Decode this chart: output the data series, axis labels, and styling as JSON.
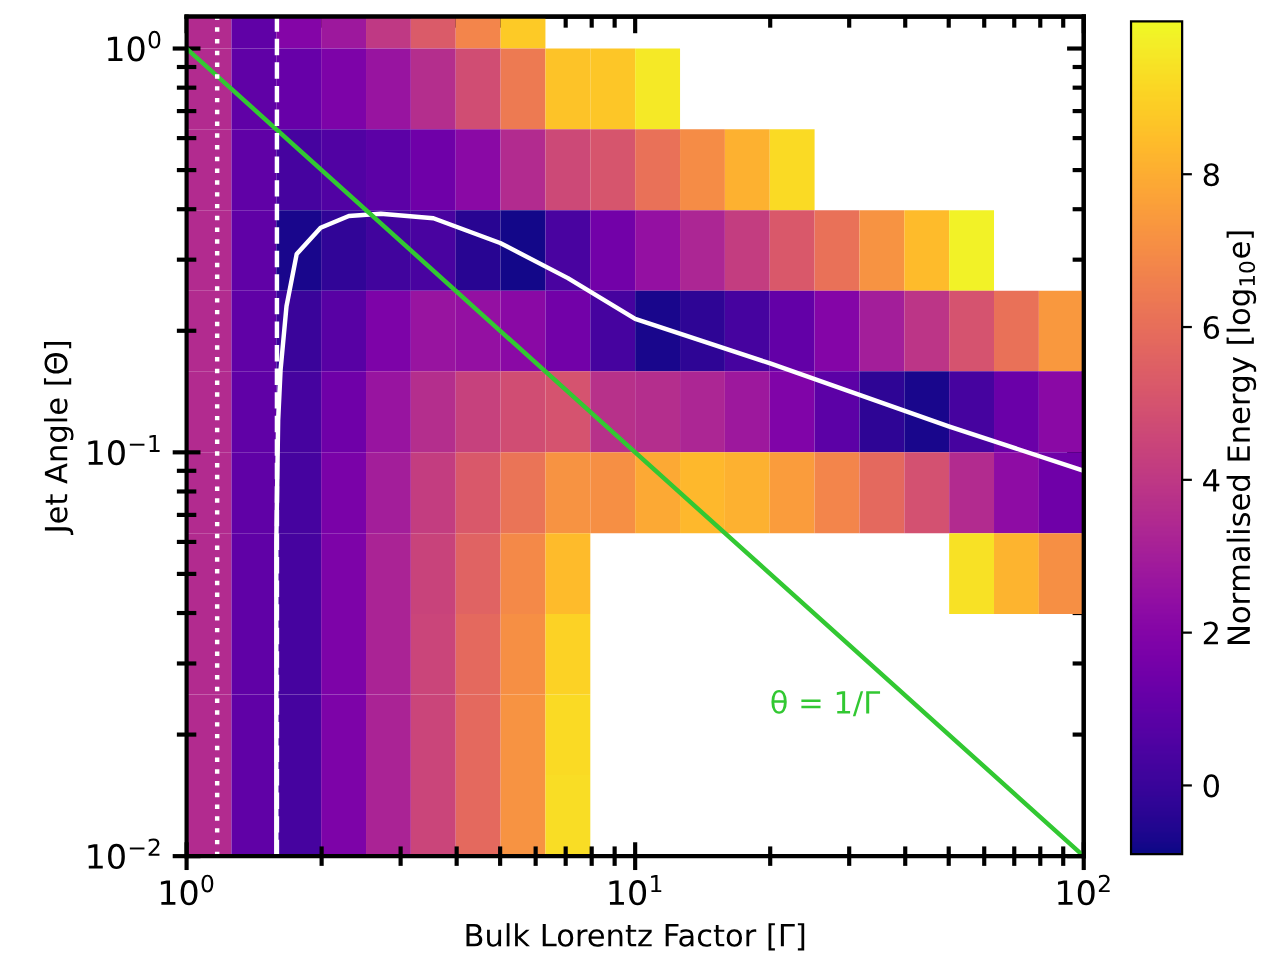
{
  "chart_data": {
    "type": "heatmap",
    "xlabel": "Bulk Lorentz Factor [Γ]",
    "ylabel": "Jet Angle [Θ]",
    "clabel": "Normalised Energy [log$_{10}$e]",
    "log": "xy",
    "xlim": [
      1,
      100
    ],
    "ylim": [
      0.01,
      1.2
    ],
    "xticks": [
      {
        "value": 1,
        "label": "10$^{0}$"
      },
      {
        "value": 10,
        "label": "10$^{1}$"
      },
      {
        "value": 100,
        "label": "10$^{2}$"
      }
    ],
    "yticks": [
      {
        "value": 0.01,
        "label": "10$^{−2}$"
      },
      {
        "value": 0.1,
        "label": "10$^{−1}$"
      },
      {
        "value": 1,
        "label": "10$^{0}$"
      }
    ],
    "clim": [
      -0.9,
      10
    ],
    "cticks": [
      0,
      2,
      4,
      6,
      8
    ],
    "x": [
      1.122,
      1.413,
      1.778,
      2.239,
      2.818,
      3.548,
      4.467,
      5.623,
      7.079,
      8.913,
      11.22,
      14.13,
      17.78,
      22.39,
      28.18,
      35.48,
      44.67,
      56.23,
      70.79,
      89.13
    ],
    "y": [
      1.259,
      0.794,
      0.501,
      0.316,
      0.2,
      0.126,
      0.0794,
      0.0501,
      0.0316,
      0.02,
      0.0126
    ],
    "cells": [
      [
        3.5,
        1.0,
        2.0,
        2.8,
        4.0,
        5.3,
        6.8,
        8.8,
        null,
        null,
        null,
        null,
        null,
        null,
        null,
        null,
        null,
        null,
        null,
        null
      ],
      [
        3.5,
        1.0,
        1.2,
        1.8,
        2.6,
        3.6,
        4.8,
        6.4,
        8.6,
        8.7,
        9.6,
        null,
        null,
        null,
        null,
        null,
        null,
        null,
        null,
        null
      ],
      [
        3.5,
        1.0,
        0.3,
        0.6,
        0.9,
        1.4,
        2.2,
        3.5,
        4.6,
        5.1,
        6.1,
        7.0,
        8.1,
        9.2,
        null,
        null,
        null,
        null,
        null,
        null
      ],
      [
        3.5,
        1.0,
        -0.7,
        -0.2,
        0.2,
        0.4,
        -0.4,
        -0.8,
        0.4,
        1.5,
        2.5,
        3.3,
        4.2,
        5.2,
        6.1,
        7.2,
        8.4,
        9.8,
        null,
        null
      ],
      [
        3.5,
        1.0,
        0.0,
        0.8,
        1.8,
        2.6,
        2.5,
        2.2,
        1.5,
        0.3,
        -0.7,
        -0.3,
        0.3,
        1.1,
        2.0,
        3.0,
        3.9,
        5.0,
        6.1,
        7.4
      ],
      [
        3.5,
        1.0,
        0.3,
        1.4,
        2.6,
        3.6,
        4.3,
        4.8,
        5.0,
        3.7,
        3.6,
        3.3,
        2.8,
        1.9,
        0.9,
        -0.3,
        -0.7,
        0.3,
        1.3,
        2.2
      ],
      [
        3.5,
        1.0,
        0.3,
        1.7,
        3.0,
        4.2,
        5.2,
        6.2,
        7.2,
        7.1,
        7.9,
        8.3,
        8.1,
        7.5,
        6.8,
        5.8,
        4.9,
        3.5,
        2.3,
        1.4
      ],
      [
        3.5,
        1.0,
        0.3,
        1.8,
        3.2,
        4.4,
        5.6,
        6.9,
        8.4,
        null,
        null,
        null,
        null,
        null,
        null,
        null,
        null,
        9.4,
        8.2,
        7.1
      ],
      [
        3.5,
        1.0,
        0.3,
        1.8,
        3.2,
        4.5,
        5.8,
        7.1,
        9.0,
        null,
        null,
        null,
        null,
        null,
        null,
        null,
        null,
        null,
        null,
        null
      ],
      [
        3.5,
        1.0,
        0.3,
        1.8,
        3.2,
        4.5,
        5.8,
        7.2,
        9.2,
        null,
        null,
        null,
        null,
        null,
        null,
        null,
        null,
        null,
        null,
        null
      ],
      [
        3.5,
        1.0,
        0.3,
        1.8,
        3.2,
        4.5,
        5.8,
        7.2,
        9.3,
        null,
        null,
        null,
        null,
        null,
        null,
        null,
        null,
        null,
        null,
        null
      ]
    ],
    "series": [
      {
        "type": "line",
        "color": "#ffffff",
        "x": [
          1.585,
          1.585,
          1.6,
          1.62,
          1.67,
          1.76,
          1.99,
          2.3,
          2.71,
          3.55,
          5.0,
          7.08,
          10,
          20,
          50,
          100
        ],
        "values": [
          0.01,
          0.06,
          0.12,
          0.16,
          0.23,
          0.31,
          0.36,
          0.385,
          0.39,
          0.38,
          0.33,
          0.27,
          0.214,
          0.166,
          0.116,
          0.09
        ]
      },
      {
        "type": "line",
        "color": "#32c832",
        "x": [
          1,
          100
        ],
        "values": [
          1,
          0.01
        ]
      }
    ],
    "ref_lines": [
      {
        "axis": "x",
        "value": 1.17,
        "color": "#ffffff",
        "line_style": "dotted"
      },
      {
        "axis": "x",
        "value": 1.59,
        "color": "#ffffff",
        "line_style": "dashed"
      }
    ],
    "annotations": [
      "θ = 1/Γ"
    ]
  }
}
